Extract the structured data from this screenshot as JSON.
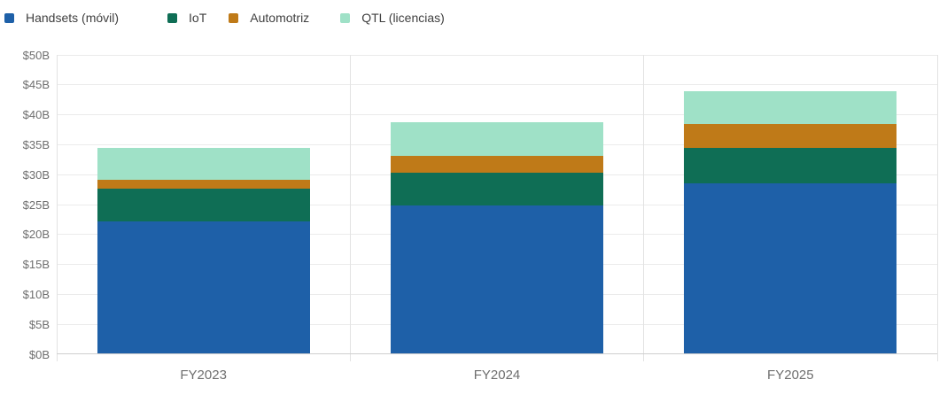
{
  "chart_data": {
    "type": "bar",
    "stacked": true,
    "title": "",
    "xlabel": "",
    "ylabel": "",
    "categories": [
      "FY2023",
      "FY2024",
      "FY2025"
    ],
    "series": [
      {
        "name": "Handsets (móvil)",
        "color": "#1e60a8",
        "values": [
          22.2,
          24.9,
          28.5
        ]
      },
      {
        "name": "IoT",
        "color": "#0f6e55",
        "values": [
          5.4,
          5.4,
          6.0
        ]
      },
      {
        "name": "Automotriz",
        "color": "#bf7a18",
        "values": [
          1.6,
          2.9,
          4.0
        ]
      },
      {
        "name": "QTL (licencias)",
        "color": "#9fe1c7",
        "values": [
          5.2,
          5.6,
          5.5
        ]
      }
    ],
    "ylim": [
      0,
      50
    ],
    "y_ticks": [
      0,
      5,
      10,
      15,
      20,
      25,
      30,
      35,
      40,
      45,
      50
    ],
    "y_tick_labels": [
      "$0B",
      "$5B",
      "$10B",
      "$15B",
      "$20B",
      "$25B",
      "$30B",
      "$35B",
      "$40B",
      "$45B",
      "$50B"
    ],
    "legend_position": "top-left",
    "grid": true
  },
  "colors": {
    "grid": "#ebebeb",
    "axis_line": "#e3e3e3",
    "baseline": "#cfcfcf",
    "tick_label": "#6e6e6e",
    "legend_text": "#404040",
    "background": "#ffffff"
  }
}
